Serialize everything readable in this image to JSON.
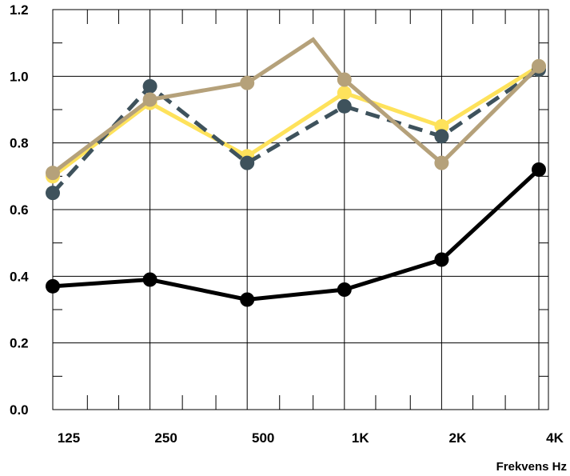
{
  "chart_data": {
    "type": "line",
    "title": "",
    "xlabel": "Frekvens Hz",
    "ylabel": "",
    "categories": [
      "125",
      "250",
      "500",
      "1K",
      "2K",
      "4K"
    ],
    "ylim": [
      0,
      1.2
    ],
    "yticks": [
      "0.0",
      "0.2",
      "0.4",
      "0.6",
      "0.8",
      "1.0",
      "1.2"
    ],
    "grid": true,
    "legend": "none",
    "series": [
      {
        "color": "#000000",
        "style": "solid",
        "points": [
          {
            "x": "125",
            "y": 0.37
          },
          {
            "x": "250",
            "y": 0.39
          },
          {
            "x": "500",
            "y": 0.33
          },
          {
            "x": "1K",
            "y": 0.36
          },
          {
            "x": "2K",
            "y": 0.45
          },
          {
            "x": "4K",
            "y": 0.72
          }
        ]
      },
      {
        "color": "#FEE25B",
        "style": "solid",
        "points": [
          {
            "x": "125",
            "y": 0.7
          },
          {
            "x": "250",
            "y": 0.92
          },
          {
            "x": "500",
            "y": 0.76
          },
          {
            "x": "1K",
            "y": 0.95
          },
          {
            "x": "2K",
            "y": 0.85
          },
          {
            "x": "4K",
            "y": 1.03
          }
        ]
      },
      {
        "color": "#3E525C",
        "style": "dashed",
        "points": [
          {
            "x": "125",
            "y": 0.65
          },
          {
            "x": "250",
            "y": 0.97
          },
          {
            "x": "500",
            "y": 0.74
          },
          {
            "x": "1K",
            "y": 0.91
          },
          {
            "x": "2K",
            "y": 0.82
          },
          {
            "x": "4K",
            "y": 1.02
          }
        ]
      },
      {
        "color": "#B5A17A",
        "style": "solid",
        "points": [
          {
            "x": "125",
            "y": 0.71
          },
          {
            "x": "250",
            "y": 0.93
          },
          {
            "x": "500",
            "y": 0.98
          },
          {
            "x": "800",
            "y": 1.11,
            "marker": false
          },
          {
            "x": "1K",
            "y": 0.99
          },
          {
            "x": "2K",
            "y": 0.74
          },
          {
            "x": "4K",
            "y": 1.03
          }
        ]
      }
    ]
  }
}
